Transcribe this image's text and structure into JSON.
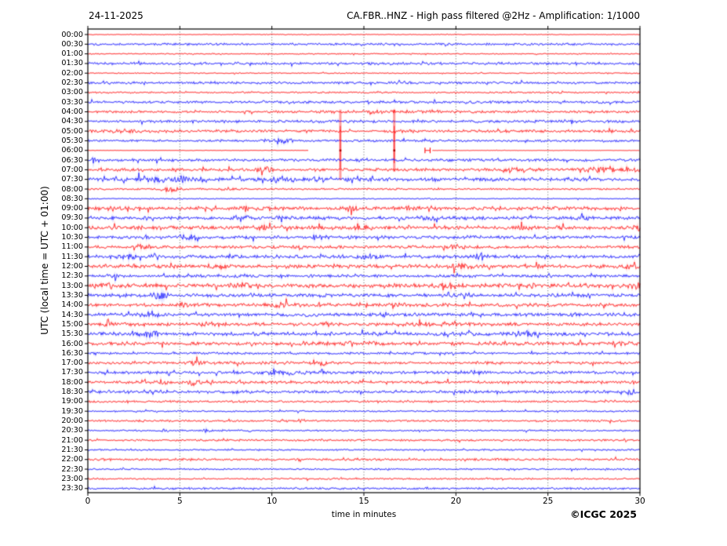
{
  "chart_data": {
    "type": "line",
    "subtype": "helicorder-seismogram",
    "date": "24-11-2025",
    "title": "CA.FBR..HNZ - High pass filtered @2Hz - Amplification: 1/1000",
    "xlabel": "time in minutes",
    "ylabel": "UTC (local time = UTC + 01:00)",
    "copyright": "©ICGC 2025",
    "x_range": [
      0,
      30
    ],
    "x_ticks": [
      0,
      5,
      10,
      15,
      20,
      25,
      30
    ],
    "grid_minutes": [
      5,
      10,
      15,
      20,
      25
    ],
    "minutes_per_line": 30,
    "grid": "vertical-dotted",
    "colors": {
      "red": "#ff0000",
      "blue": "#0000ff",
      "axis": "#000000",
      "grid": "#555555",
      "spike_dot": "#aa0000"
    },
    "rows": [
      {
        "label": "00:00",
        "color": "red",
        "amp": 0.35,
        "events": []
      },
      {
        "label": "00:30",
        "color": "blue",
        "amp": 1.0,
        "events": []
      },
      {
        "label": "01:00",
        "color": "red",
        "amp": 0.5,
        "events": []
      },
      {
        "label": "01:30",
        "color": "blue",
        "amp": 1.1,
        "events": []
      },
      {
        "label": "02:00",
        "color": "red",
        "amp": 0.5,
        "events": []
      },
      {
        "label": "02:30",
        "color": "blue",
        "amp": 1.1,
        "events": []
      },
      {
        "label": "03:00",
        "color": "red",
        "amp": 0.7,
        "events": []
      },
      {
        "label": "03:30",
        "color": "blue",
        "amp": 1.1,
        "events": []
      },
      {
        "label": "04:00",
        "color": "red",
        "amp": 1.1,
        "events": [
          {
            "t": 16.5,
            "w": 1.5,
            "a": 0.6
          }
        ]
      },
      {
        "label": "04:30",
        "color": "blue",
        "amp": 1.2,
        "events": []
      },
      {
        "label": "05:00",
        "color": "red",
        "amp": 1.2,
        "events": [
          {
            "t": 2.0,
            "w": 0.8,
            "a": 0.8
          },
          {
            "t": 17.0,
            "w": 0.5,
            "a": 0.8
          }
        ]
      },
      {
        "label": "05:30",
        "color": "blue",
        "amp": 1.0,
        "events": [
          {
            "t": 10.3,
            "w": 0.12,
            "a": 3.5
          },
          {
            "t": 10.8,
            "w": 0.3,
            "a": 1.2
          }
        ]
      },
      {
        "label": "06:00",
        "color": "red",
        "amp": 0.18,
        "events": [],
        "segments": [
          [
            0,
            12.0
          ],
          [
            18.72,
            30
          ]
        ],
        "spikes": [
          {
            "t": 13.72,
            "up": 52,
            "down": 38
          },
          {
            "t": 16.65,
            "up": 52,
            "down": 27
          }
        ],
        "marker": {
          "t1": 18.32,
          "t2": 18.6,
          "h": 3.5
        }
      },
      {
        "label": "06:30",
        "color": "blue",
        "amp": 1.2,
        "events": [
          {
            "t": 0.3,
            "w": 0.08,
            "a": 2.5
          }
        ]
      },
      {
        "label": "07:00",
        "color": "red",
        "amp": 1.3,
        "events": [
          {
            "t": 9.7,
            "w": 0.3,
            "a": 2.0
          },
          {
            "t": 23.0,
            "w": 0.8,
            "a": 0.8
          },
          {
            "t": 28.6,
            "w": 1.2,
            "a": 2.2
          }
        ]
      },
      {
        "label": "07:30",
        "color": "blue",
        "amp": 1.6,
        "events": [
          {
            "t": 2.0,
            "w": 0.15,
            "a": 2.0
          },
          {
            "t": 3.0,
            "w": 0.3,
            "a": 2.0
          },
          {
            "t": 4.0,
            "w": 0.4,
            "a": 2.2
          },
          {
            "t": 5.2,
            "w": 0.3,
            "a": 1.8
          },
          {
            "t": 6.3,
            "w": 0.2,
            "a": 2.0
          },
          {
            "t": 10.4,
            "w": 0.3,
            "a": 2.5
          },
          {
            "t": 12.5,
            "w": 0.2,
            "a": 2.5
          },
          {
            "t": 14.4,
            "w": 0.25,
            "a": 2.0
          },
          {
            "t": 26.3,
            "w": 0.2,
            "a": 1.5
          }
        ]
      },
      {
        "label": "08:00",
        "color": "red",
        "amp": 0.8,
        "events": [
          {
            "t": 4.5,
            "w": 0.3,
            "a": 2.8
          },
          {
            "t": 7.5,
            "w": 0.2,
            "a": 1.0
          }
        ]
      },
      {
        "label": "08:30",
        "color": "blue",
        "amp": 0.5,
        "events": []
      },
      {
        "label": "09:00",
        "color": "red",
        "amp": 1.6,
        "events": [
          {
            "t": 1.5,
            "w": 0.3,
            "a": 1.0
          },
          {
            "t": 8.7,
            "w": 0.25,
            "a": 2.0
          },
          {
            "t": 14.3,
            "w": 0.4,
            "a": 2.0
          },
          {
            "t": 17.5,
            "w": 0.2,
            "a": 1.2
          },
          {
            "t": 22.0,
            "w": 0.3,
            "a": 1.0
          }
        ]
      },
      {
        "label": "09:30",
        "color": "blue",
        "amp": 1.5,
        "events": [
          {
            "t": 8.3,
            "w": 0.3,
            "a": 2.0
          },
          {
            "t": 16.8,
            "w": 0.3,
            "a": 1.5
          },
          {
            "t": 18.6,
            "w": 0.3,
            "a": 1.5
          },
          {
            "t": 27.0,
            "w": 0.3,
            "a": 1.0
          }
        ]
      },
      {
        "label": "10:00",
        "color": "red",
        "amp": 1.7,
        "events": [
          {
            "t": 9.8,
            "w": 0.3,
            "a": 1.5
          },
          {
            "t": 14.9,
            "w": 0.3,
            "a": 2.0
          },
          {
            "t": 23.5,
            "w": 0.4,
            "a": 2.2
          },
          {
            "t": 29.8,
            "w": 0.3,
            "a": 1.5
          }
        ]
      },
      {
        "label": "10:30",
        "color": "blue",
        "amp": 1.5,
        "events": [
          {
            "t": 5.6,
            "w": 0.4,
            "a": 1.8
          },
          {
            "t": 12.4,
            "w": 0.3,
            "a": 1.5
          },
          {
            "t": 21.0,
            "w": 0.3,
            "a": 1.0
          }
        ]
      },
      {
        "label": "11:00",
        "color": "red",
        "amp": 1.3,
        "events": [
          {
            "t": 3.0,
            "w": 0.3,
            "a": 2.2
          },
          {
            "t": 11.5,
            "w": 0.3,
            "a": 1.0
          },
          {
            "t": 20.0,
            "w": 0.4,
            "a": 1.5
          }
        ]
      },
      {
        "label": "11:30",
        "color": "blue",
        "amp": 1.5,
        "events": [
          {
            "t": 2.2,
            "w": 0.3,
            "a": 1.5
          },
          {
            "t": 3.6,
            "w": 0.2,
            "a": 1.5
          },
          {
            "t": 15.5,
            "w": 0.4,
            "a": 1.8
          },
          {
            "t": 21.4,
            "w": 0.3,
            "a": 2.2
          },
          {
            "t": 25.0,
            "w": 0.2,
            "a": 1.0
          }
        ]
      },
      {
        "label": "12:00",
        "color": "red",
        "amp": 1.7,
        "events": [
          {
            "t": 7.0,
            "w": 0.4,
            "a": 1.5
          },
          {
            "t": 20.2,
            "w": 0.4,
            "a": 1.8
          },
          {
            "t": 29.6,
            "w": 0.4,
            "a": 2.5
          }
        ]
      },
      {
        "label": "12:30",
        "color": "blue",
        "amp": 1.3,
        "events": [
          {
            "t": 1.5,
            "w": 0.3,
            "a": 1.2
          },
          {
            "t": 10.5,
            "w": 0.2,
            "a": 1.0
          }
        ]
      },
      {
        "label": "13:00",
        "color": "red",
        "amp": 1.8,
        "events": [
          {
            "t": 1.3,
            "w": 0.4,
            "a": 2.0
          },
          {
            "t": 8.2,
            "w": 0.3,
            "a": 1.5
          },
          {
            "t": 19.5,
            "w": 0.4,
            "a": 2.2
          },
          {
            "t": 24.0,
            "w": 0.3,
            "a": 1.2
          },
          {
            "t": 29.7,
            "w": 0.3,
            "a": 2.0
          }
        ]
      },
      {
        "label": "13:30",
        "color": "blue",
        "amp": 1.5,
        "events": [
          {
            "t": 3.9,
            "w": 0.4,
            "a": 2.0
          },
          {
            "t": 9.0,
            "w": 0.2,
            "a": 1.0
          },
          {
            "t": 20.4,
            "w": 0.3,
            "a": 2.0
          }
        ]
      },
      {
        "label": "14:00",
        "color": "red",
        "amp": 1.5,
        "events": [
          {
            "t": 5.0,
            "w": 0.3,
            "a": 1.2
          },
          {
            "t": 10.4,
            "w": 0.35,
            "a": 2.5
          },
          {
            "t": 17.0,
            "w": 0.3,
            "a": 1.2
          }
        ]
      },
      {
        "label": "14:30",
        "color": "blue",
        "amp": 1.5,
        "events": [
          {
            "t": 3.5,
            "w": 0.3,
            "a": 1.8
          },
          {
            "t": 12.0,
            "w": 0.2,
            "a": 1.0
          },
          {
            "t": 16.0,
            "w": 0.3,
            "a": 1.5
          }
        ]
      },
      {
        "label": "15:00",
        "color": "red",
        "amp": 1.5,
        "events": [
          {
            "t": 1.0,
            "w": 0.2,
            "a": 1.5
          },
          {
            "t": 6.4,
            "w": 0.3,
            "a": 2.2
          },
          {
            "t": 13.0,
            "w": 0.2,
            "a": 1.0
          },
          {
            "t": 18.5,
            "w": 1.2,
            "a": 1.0
          }
        ]
      },
      {
        "label": "15:30",
        "color": "blue",
        "amp": 1.7,
        "events": [
          {
            "t": 3.4,
            "w": 0.3,
            "a": 1.8
          },
          {
            "t": 16.0,
            "w": 0.2,
            "a": 1.2
          },
          {
            "t": 23.8,
            "w": 0.35,
            "a": 2.2
          }
        ]
      },
      {
        "label": "16:00",
        "color": "red",
        "amp": 1.5,
        "events": [
          {
            "t": 12.0,
            "w": 0.5,
            "a": 1.2
          },
          {
            "t": 15.0,
            "w": 1.0,
            "a": 1.0
          },
          {
            "t": 28.8,
            "w": 0.3,
            "a": 1.5
          }
        ]
      },
      {
        "label": "16:30",
        "color": "blue",
        "amp": 1.0,
        "events": []
      },
      {
        "label": "17:00",
        "color": "red",
        "amp": 1.3,
        "events": [
          {
            "t": 5.9,
            "w": 0.3,
            "a": 1.5
          },
          {
            "t": 12.9,
            "w": 0.25,
            "a": 1.5
          }
        ]
      },
      {
        "label": "17:30",
        "color": "blue",
        "amp": 1.3,
        "events": [
          {
            "t": 10.8,
            "w": 0.8,
            "a": 1.5
          },
          {
            "t": 12.7,
            "w": 0.08,
            "a": 4.0
          },
          {
            "t": 21.0,
            "w": 0.2,
            "a": 1.0
          }
        ]
      },
      {
        "label": "18:00",
        "color": "red",
        "amp": 1.3,
        "events": [
          {
            "t": 3.0,
            "w": 0.15,
            "a": 2.0
          },
          {
            "t": 4.0,
            "w": 0.2,
            "a": 2.5
          },
          {
            "t": 6.0,
            "w": 0.5,
            "a": 2.5
          },
          {
            "t": 8.2,
            "w": 0.2,
            "a": 1.2
          }
        ]
      },
      {
        "label": "18:30",
        "color": "blue",
        "amp": 1.3,
        "events": [
          {
            "t": 29.5,
            "w": 0.15,
            "a": 2.0
          }
        ]
      },
      {
        "label": "19:00",
        "color": "red",
        "amp": 0.9,
        "events": []
      },
      {
        "label": "19:30",
        "color": "blue",
        "amp": 0.7,
        "events": []
      },
      {
        "label": "20:00",
        "color": "red",
        "amp": 0.9,
        "events": [
          {
            "t": 11.5,
            "w": 0.2,
            "a": 1.0
          }
        ]
      },
      {
        "label": "20:30",
        "color": "blue",
        "amp": 0.7,
        "events": [
          {
            "t": 4.2,
            "w": 0.1,
            "a": 1.5
          },
          {
            "t": 6.5,
            "w": 0.15,
            "a": 1.8
          },
          {
            "t": 7.3,
            "w": 0.1,
            "a": 1.2
          },
          {
            "t": 8.7,
            "w": 0.1,
            "a": 1.5
          }
        ]
      },
      {
        "label": "21:00",
        "color": "red",
        "amp": 0.9,
        "events": []
      },
      {
        "label": "21:30",
        "color": "blue",
        "amp": 0.7,
        "events": []
      },
      {
        "label": "22:00",
        "color": "red",
        "amp": 1.0,
        "events": []
      },
      {
        "label": "22:30",
        "color": "blue",
        "amp": 0.7,
        "events": []
      },
      {
        "label": "23:00",
        "color": "red",
        "amp": 0.7,
        "events": []
      },
      {
        "label": "23:30",
        "color": "blue",
        "amp": 0.9,
        "events": []
      }
    ]
  }
}
